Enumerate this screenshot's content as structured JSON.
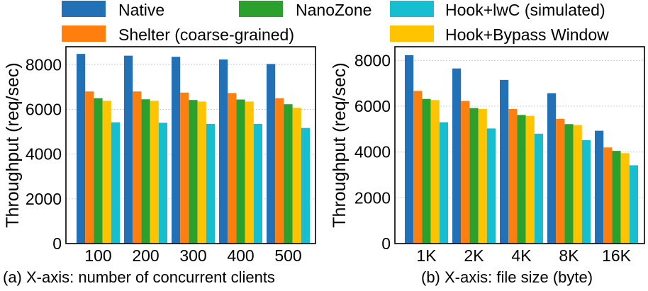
{
  "legend": {
    "items": [
      {
        "key": "native",
        "label": "Native",
        "suffix": "",
        "color": "#2270b6"
      },
      {
        "key": "nanozone",
        "label": "NanoZone",
        "suffix": "",
        "color": "#2ca02c"
      },
      {
        "key": "hooklwc",
        "label": "Hook+lwC",
        "suffix": " (simulated)",
        "color": "#17becf"
      },
      {
        "key": "shelter",
        "label": "Shelter",
        "suffix": " (coarse-grained)",
        "color": "#ff7f0e"
      },
      {
        "key": "bypass",
        "label": "Hook+Bypass Window",
        "suffix": "",
        "color": "#ffc400"
      }
    ]
  },
  "chart_data": [
    {
      "type": "bar",
      "caption": "(a) X-axis: number of concurrent clients",
      "ylabel": "Throughput (req/sec)",
      "ylim": [
        0,
        8800
      ],
      "yticks": [
        0,
        2000,
        4000,
        6000,
        8000
      ],
      "grid": true,
      "categories": [
        "100",
        "200",
        "300",
        "400",
        "500"
      ],
      "series": [
        {
          "name": "Native",
          "values": [
            8480,
            8400,
            8350,
            8230,
            8030
          ]
        },
        {
          "name": "Shelter",
          "values": [
            6800,
            6800,
            6750,
            6730,
            6500
          ]
        },
        {
          "name": "NanoZone",
          "values": [
            6500,
            6450,
            6420,
            6440,
            6230
          ]
        },
        {
          "name": "Hook+Bypass Window",
          "values": [
            6380,
            6380,
            6350,
            6350,
            6070
          ]
        },
        {
          "name": "Hook+lwC (simulated)",
          "values": [
            5420,
            5400,
            5350,
            5350,
            5170
          ]
        }
      ]
    },
    {
      "type": "bar",
      "caption": "(b) X-axis: file size (byte)",
      "ylabel": "Throughput (req/sec)",
      "ylim": [
        0,
        8600
      ],
      "yticks": [
        0,
        2000,
        4000,
        6000,
        8000
      ],
      "grid": true,
      "categories": [
        "1K",
        "2K",
        "4K",
        "8K",
        "16K"
      ],
      "series": [
        {
          "name": "Native",
          "values": [
            8230,
            7650,
            7150,
            6570,
            4930
          ]
        },
        {
          "name": "Shelter",
          "values": [
            6670,
            6230,
            5880,
            5450,
            4200
          ]
        },
        {
          "name": "NanoZone",
          "values": [
            6320,
            5920,
            5620,
            5220,
            4050
          ]
        },
        {
          "name": "Hook+Bypass Window",
          "values": [
            6270,
            5880,
            5580,
            5180,
            3950
          ]
        },
        {
          "name": "Hook+lwC (simulated)",
          "values": [
            5300,
            5030,
            4800,
            4520,
            3420
          ]
        }
      ]
    }
  ]
}
